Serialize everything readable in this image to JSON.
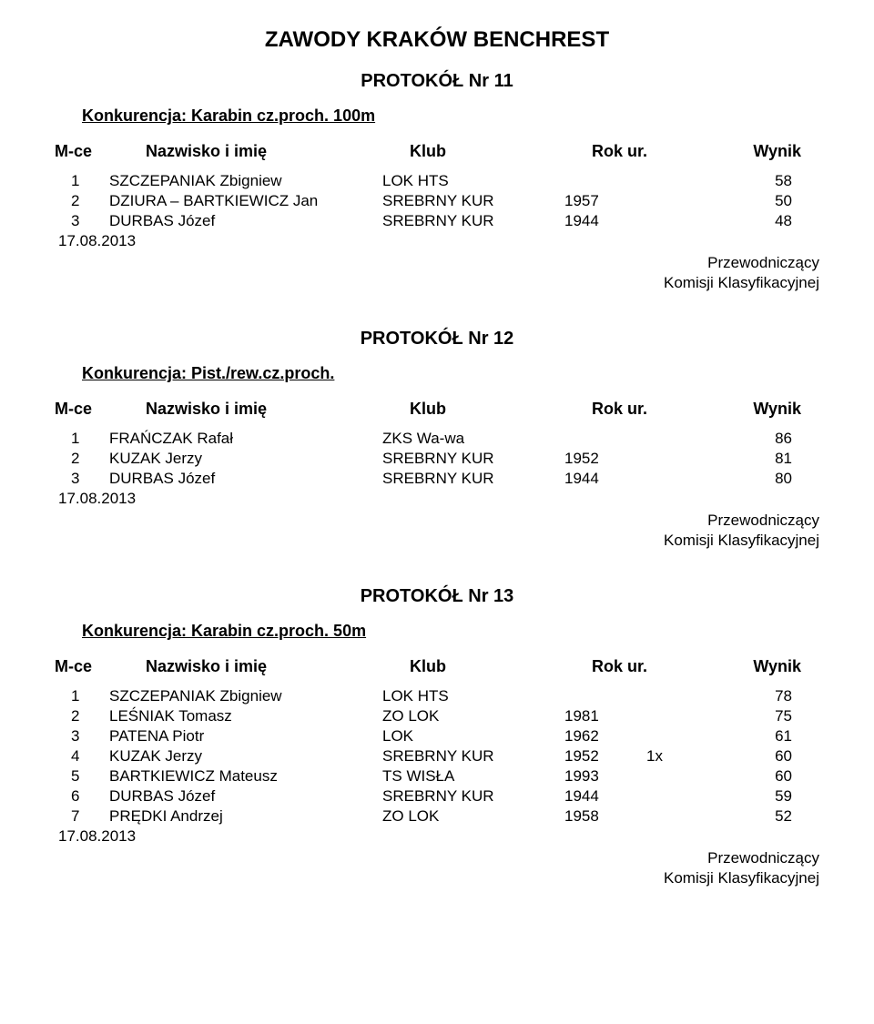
{
  "main_title": "ZAWODY KRAKÓW BENCHREST",
  "colors": {
    "text": "#000000",
    "background": "#ffffff"
  },
  "typography": {
    "main_title_fontsize": 24,
    "protocol_fontsize": 20,
    "konkurencja_fontsize": 18,
    "header_fontsize": 18,
    "body_fontsize": 17,
    "font_family": "Arial"
  },
  "headers": {
    "mce": "M-ce",
    "name": "Nazwisko i imię",
    "klub": "Klub",
    "rok": "Rok ur.",
    "wynik": "Wynik"
  },
  "common": {
    "date": "17.08.2013",
    "signer1": "Przewodniczący",
    "signer2": "Komisji Klasyfikacyjnej"
  },
  "sections": [
    {
      "protocol": "PROTOKÓŁ Nr 11",
      "konkurencja": "Konkurencja: Karabin cz.proch. 100m",
      "rows": [
        {
          "pos": "1",
          "name": "SZCZEPANIAK Zbigniew",
          "klub": "LOK HTS",
          "rok": "",
          "extra": "",
          "wynik": "58"
        },
        {
          "pos": "2",
          "name": "DZIURA – BARTKIEWICZ Jan",
          "klub": "SREBRNY KUR",
          "rok": "1957",
          "extra": "",
          "wynik": "50"
        },
        {
          "pos": "3",
          "name": "DURBAS Józef",
          "klub": "SREBRNY KUR",
          "rok": "1944",
          "extra": "",
          "wynik": "48"
        }
      ]
    },
    {
      "protocol": "PROTOKÓŁ Nr 12",
      "konkurencja": "Konkurencja: Pist./rew.cz.proch.",
      "rows": [
        {
          "pos": "1",
          "name": "FRAŃCZAK Rafał",
          "klub": "ZKS Wa-wa",
          "rok": "",
          "extra": "",
          "wynik": "86"
        },
        {
          "pos": "2",
          "name": "KUZAK Jerzy",
          "klub": "SREBRNY KUR",
          "rok": "1952",
          "extra": "",
          "wynik": "81"
        },
        {
          "pos": "3",
          "name": "DURBAS Józef",
          "klub": "SREBRNY KUR",
          "rok": "1944",
          "extra": "",
          "wynik": "80"
        }
      ]
    },
    {
      "protocol": "PROTOKÓŁ Nr 13",
      "konkurencja": "Konkurencja: Karabin cz.proch. 50m",
      "rows": [
        {
          "pos": "1",
          "name": "SZCZEPANIAK Zbigniew",
          "klub": "LOK HTS",
          "rok": "",
          "extra": "",
          "wynik": "78"
        },
        {
          "pos": "2",
          "name": "LEŚNIAK Tomasz",
          "klub": "ZO LOK",
          "rok": "1981",
          "extra": "",
          "wynik": "75"
        },
        {
          "pos": "3",
          "name": "PATENA Piotr",
          "klub": "LOK",
          "rok": "1962",
          "extra": "",
          "wynik": "61"
        },
        {
          "pos": "4",
          "name": "KUZAK Jerzy",
          "klub": "SREBRNY KUR",
          "rok": "1952",
          "extra": "1x",
          "wynik": "60"
        },
        {
          "pos": "5",
          "name": "BARTKIEWICZ Mateusz",
          "klub": "TS WISŁA",
          "rok": "1993",
          "extra": "",
          "wynik": "60"
        },
        {
          "pos": "6",
          "name": "DURBAS Józef",
          "klub": "SREBRNY KUR",
          "rok": "1944",
          "extra": "",
          "wynik": "59"
        },
        {
          "pos": "7",
          "name": "PRĘDKI Andrzej",
          "klub": "ZO LOK",
          "rok": "1958",
          "extra": "",
          "wynik": "52"
        }
      ]
    }
  ]
}
